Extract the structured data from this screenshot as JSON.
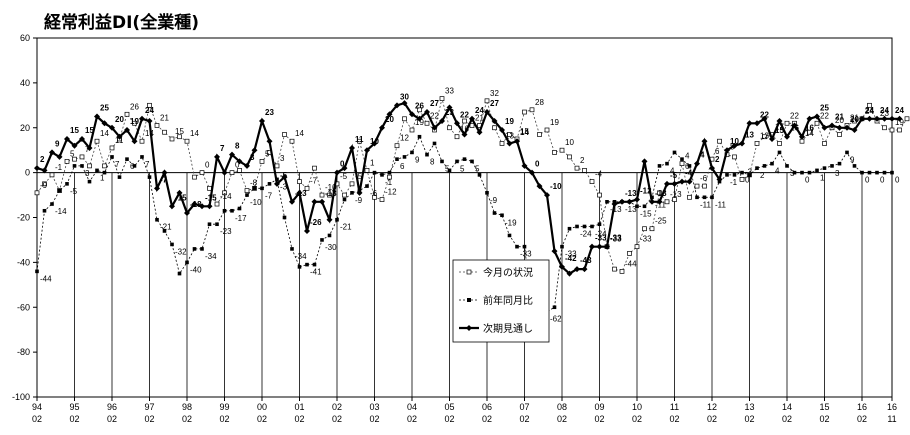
{
  "chart_data": {
    "type": "line",
    "title": "経常利益DI(全業種)",
    "ylim": [
      -100,
      60
    ],
    "yticks": [
      "60",
      "40",
      "20",
      "0",
      "-20",
      "-40",
      "-60",
      "-80",
      "-100"
    ],
    "ytick_values": [
      60,
      40,
      20,
      0,
      -20,
      -40,
      -60,
      -80,
      -100
    ],
    "xticks": [
      {
        "i": 0,
        "top": "94",
        "bottom": "02"
      },
      {
        "i": 5,
        "top": "95",
        "bottom": "02"
      },
      {
        "i": 10,
        "top": "96",
        "bottom": "02"
      },
      {
        "i": 15,
        "top": "97",
        "bottom": "02"
      },
      {
        "i": 20,
        "top": "98",
        "bottom": "02"
      },
      {
        "i": 25,
        "top": "99",
        "bottom": "02"
      },
      {
        "i": 30,
        "top": "00",
        "bottom": "02"
      },
      {
        "i": 35,
        "top": "01",
        "bottom": "02"
      },
      {
        "i": 40,
        "top": "02",
        "bottom": "02"
      },
      {
        "i": 45,
        "top": "03",
        "bottom": "02"
      },
      {
        "i": 50,
        "top": "04",
        "bottom": "02"
      },
      {
        "i": 55,
        "top": "05",
        "bottom": "02"
      },
      {
        "i": 60,
        "top": "06",
        "bottom": "02"
      },
      {
        "i": 65,
        "top": "07",
        "bottom": "02"
      },
      {
        "i": 70,
        "top": "08",
        "bottom": "02"
      },
      {
        "i": 75,
        "top": "09",
        "bottom": "02"
      },
      {
        "i": 80,
        "top": "10",
        "bottom": "02"
      },
      {
        "i": 85,
        "top": "11",
        "bottom": "02"
      },
      {
        "i": 90,
        "top": "12",
        "bottom": "02"
      },
      {
        "i": 95,
        "top": "13",
        "bottom": "02"
      },
      {
        "i": 100,
        "top": "14",
        "bottom": "02"
      },
      {
        "i": 105,
        "top": "15",
        "bottom": "02"
      },
      {
        "i": 110,
        "top": "16",
        "bottom": "02"
      },
      {
        "i": 114,
        "top": "16",
        "bottom": "11"
      }
    ],
    "point_count": 115,
    "series": [
      {
        "name": "今月の状況",
        "marker": "open-square",
        "values": [
          -9,
          -5,
          -1,
          -8,
          5,
          6,
          7,
          3,
          14,
          3,
          11,
          15,
          26,
          22,
          14,
          30,
          21,
          18,
          15,
          16,
          14,
          -2,
          0,
          -7,
          -14,
          -9,
          0,
          1,
          -8,
          -7,
          5,
          9,
          3,
          17,
          14,
          -4,
          -7,
          2,
          -10,
          -10,
          -5,
          -10,
          -5,
          14,
          1,
          -11,
          -12,
          -2,
          12,
          24,
          19,
          28,
          22,
          19,
          33,
          20,
          16,
          23,
          21,
          21,
          32,
          20,
          13,
          17,
          15,
          27,
          28,
          17,
          19,
          9,
          10,
          7,
          2,
          1,
          -4,
          -10,
          -33,
          -43,
          -44,
          -36,
          -33,
          -25,
          -25,
          -9,
          -13,
          -12,
          4,
          -11,
          -6,
          -6,
          6,
          14,
          8,
          7,
          -3,
          -1,
          13,
          16,
          17,
          13,
          22,
          22,
          14,
          18,
          22,
          13,
          20,
          17,
          21,
          23,
          24,
          30,
          23,
          20,
          19,
          19,
          24
        ]
      },
      {
        "name": "前年同月比",
        "marker": "filled-square",
        "values": [
          -44,
          -17,
          -14,
          -8,
          -5,
          3,
          3,
          -4,
          1,
          0,
          7,
          -2,
          6,
          3,
          7,
          -2,
          -21,
          -26,
          -32,
          -45,
          -40,
          -34,
          -34,
          -23,
          -23,
          -17,
          -17,
          -16,
          -10,
          -7,
          -7,
          -5,
          -3,
          -20,
          -34,
          -42,
          -41,
          -41,
          -30,
          -28,
          -21,
          -12,
          -9,
          -8,
          -6,
          0,
          -1,
          0,
          6,
          7,
          9,
          16,
          8,
          13,
          5,
          1,
          5,
          6,
          5,
          -1,
          -9,
          -18,
          -19,
          -28,
          -33,
          -33,
          -60,
          -62,
          -62,
          -60,
          -33,
          -25,
          -24,
          -24,
          -24,
          -23,
          -13,
          -13,
          -13,
          -13,
          -15,
          -15,
          -11,
          3,
          4,
          9,
          6,
          3,
          -11,
          -11,
          -11,
          -4,
          -1,
          -1,
          0,
          -1,
          2,
          3,
          4,
          9,
          3,
          0,
          0,
          0,
          1,
          2,
          3,
          4,
          9,
          3,
          0,
          0,
          0,
          0,
          0
        ]
      },
      {
        "name": "次期見通し",
        "marker": "filled-diamond",
        "values": [
          2,
          1,
          9,
          7,
          15,
          12,
          15,
          11,
          25,
          22,
          20,
          16,
          19,
          14,
          24,
          23,
          -7,
          0,
          -15,
          -9,
          -18,
          -14,
          -15,
          -15,
          7,
          0,
          8,
          5,
          3,
          10,
          23,
          14,
          -5,
          -2,
          -13,
          -9,
          -26,
          -13,
          -13,
          -21,
          0,
          2,
          11,
          -9,
          10,
          13,
          20,
          26,
          30,
          31,
          26,
          24,
          27,
          20,
          23,
          29,
          22,
          17,
          24,
          18,
          27,
          23,
          19,
          13,
          14,
          3,
          0,
          -6,
          -10,
          -35,
          -42,
          -45,
          -43,
          -43,
          -33,
          -33,
          -33,
          -14,
          -13,
          -13,
          -12,
          5,
          -13,
          -13,
          -5,
          -5,
          -4,
          -4,
          4,
          14,
          2,
          -3,
          10,
          12,
          13,
          22,
          22,
          24,
          15,
          23,
          16,
          21,
          16,
          24,
          25,
          20,
          21,
          20,
          20,
          19,
          24,
          24,
          24,
          24,
          24,
          24
        ]
      }
    ],
    "legend": {
      "entries": [
        "今月の状況",
        "前年同月比",
        "次期見通し"
      ],
      "placement": "bottom-center"
    },
    "grid": false
  }
}
